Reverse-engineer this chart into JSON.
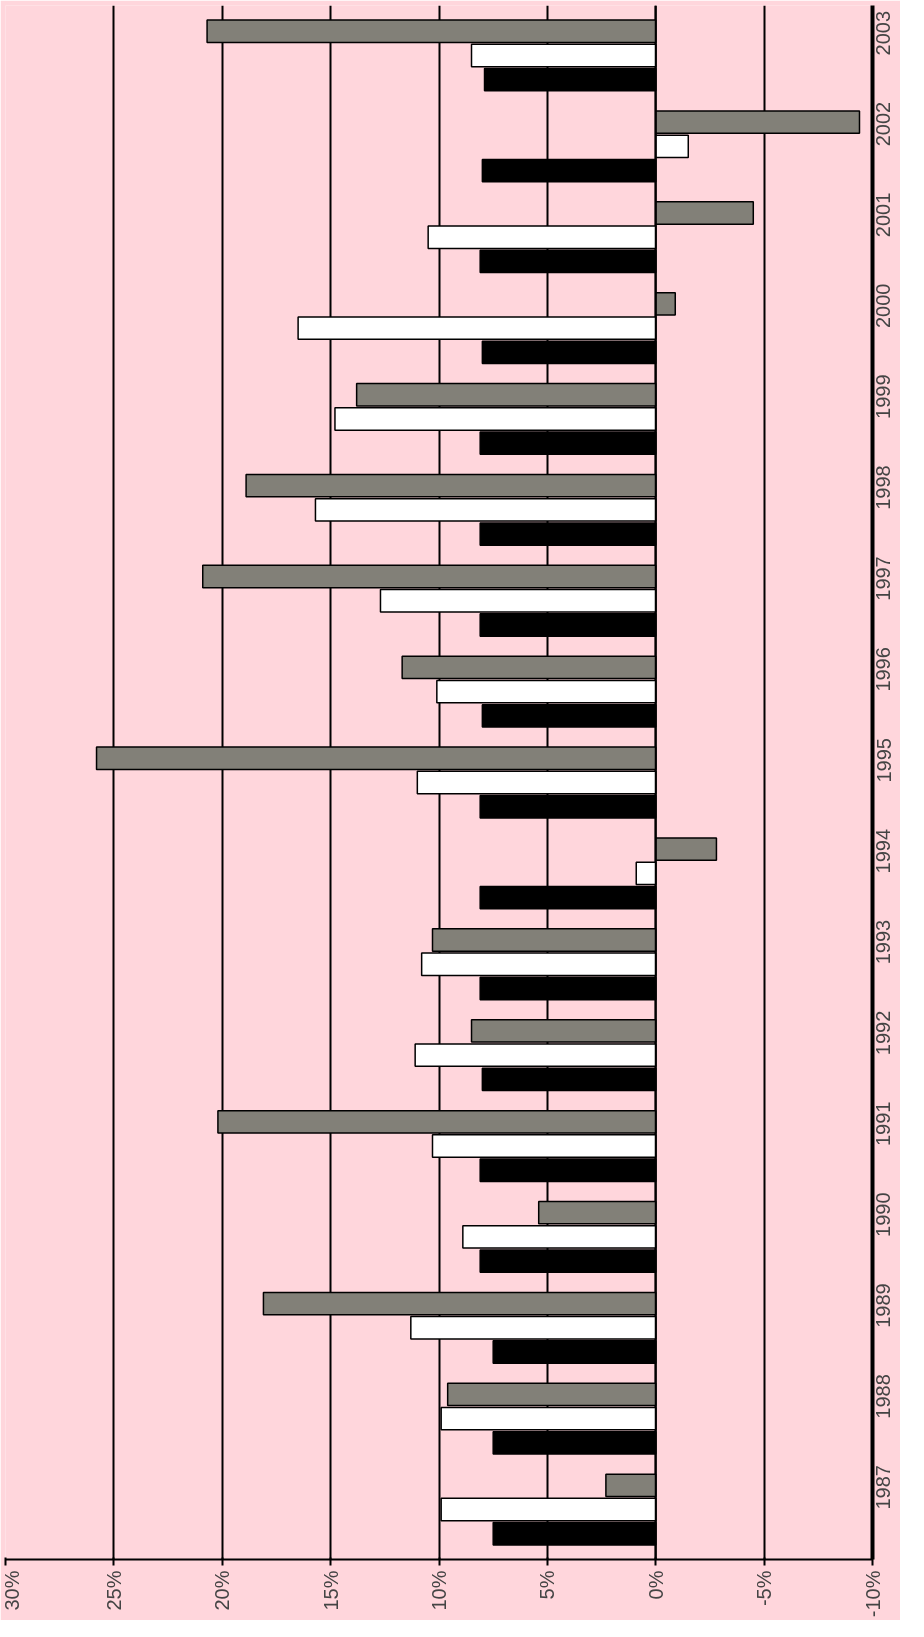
{
  "chart_data": {
    "type": "bar",
    "orientation": "horizontal",
    "categories": [
      "2003",
      "2002",
      "2001",
      "2000",
      "1999",
      "1998",
      "1997",
      "1996",
      "1995",
      "1994",
      "1993",
      "1992",
      "1991",
      "1990",
      "1989",
      "1988",
      "1987"
    ],
    "series": [
      {
        "color": "#000000",
        "values": [
          7.9,
          8.0,
          8.1,
          8.0,
          8.1,
          8.1,
          8.1,
          8.0,
          8.1,
          8.1,
          8.1,
          8.0,
          8.1,
          8.1,
          7.5,
          7.5,
          7.5
        ]
      },
      {
        "color": "#ffffff",
        "values": [
          8.5,
          -1.5,
          10.5,
          16.5,
          14.8,
          15.7,
          12.7,
          10.1,
          11.0,
          0.9,
          10.8,
          11.1,
          10.3,
          8.9,
          11.3,
          9.9,
          9.9
        ]
      },
      {
        "color": "#828078",
        "values": [
          20.7,
          -9.4,
          -4.5,
          -0.9,
          13.8,
          18.9,
          20.9,
          11.7,
          25.8,
          -2.8,
          10.3,
          8.5,
          20.2,
          5.4,
          18.1,
          9.6,
          2.3
        ]
      }
    ],
    "xlim": [
      30,
      -10
    ],
    "xticks": [
      {
        "value": 30,
        "label": "30%"
      },
      {
        "value": 25,
        "label": "25%"
      },
      {
        "value": 20,
        "label": "20%"
      },
      {
        "value": 15,
        "label": "15%"
      },
      {
        "value": 10,
        "label": "10%"
      },
      {
        "value": 5,
        "label": "5%"
      },
      {
        "value": 0,
        "label": "0%"
      },
      {
        "value": -5,
        "label": "-5%"
      },
      {
        "value": -10,
        "label": "-10%"
      }
    ],
    "grid": "x"
  }
}
